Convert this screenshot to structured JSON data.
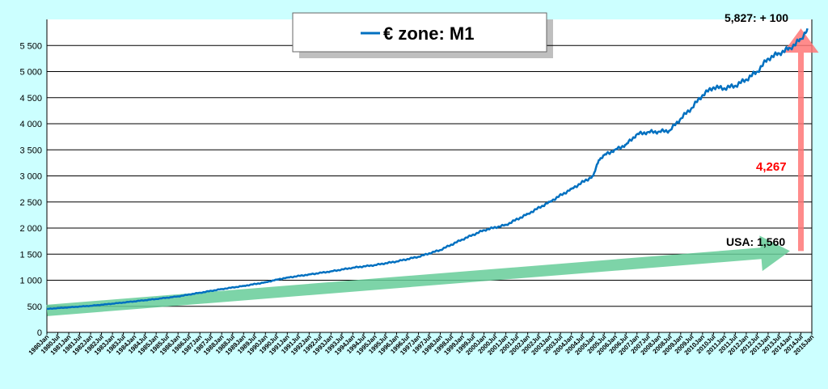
{
  "chart_data": {
    "type": "line",
    "title": "€ zone: M1",
    "legend": "top-center",
    "grid": true,
    "ylim": [
      0,
      6000
    ],
    "yticks": [
      0,
      500,
      1000,
      1500,
      2000,
      2500,
      3000,
      3500,
      4000,
      4500,
      5000,
      5500
    ],
    "ytick_labels": [
      "0",
      "500",
      "1 000",
      "1 500",
      "2 000",
      "2 500",
      "3 000",
      "3 500",
      "4 000",
      "4 500",
      "5 000",
      "5 500"
    ],
    "x_start": 1980.0,
    "x_end": 2015.0,
    "x_tick_labels": [
      "1980Jan",
      "1980Jul",
      "1981Jan",
      "1981Jul",
      "1982Jan",
      "1982Jul",
      "1983Jan",
      "1983Jul",
      "1984Jan",
      "1984Jul",
      "1985Jan",
      "1985Jul",
      "1986Jan",
      "1986Jul",
      "1987Jan",
      "1987Jul",
      "1988Jan",
      "1988Jul",
      "1989Jan",
      "1989Jul",
      "1990Jan",
      "1990Jul",
      "1991Jan",
      "1991Jul",
      "1992Jan",
      "1992Jul",
      "1993Jan",
      "1993Jul",
      "1994Jan",
      "1994Jul",
      "1995Jan",
      "1995Jul",
      "1996Jan",
      "1996Jul",
      "1997Jan",
      "1997Jul",
      "1998Jan",
      "1998Jul",
      "1999Jan",
      "1999Jul",
      "2000Jan",
      "2000Jul",
      "2001Jan",
      "2001Jul",
      "2002Jan",
      "2002Jul",
      "2003Jan",
      "2003Jul",
      "2004Jan",
      "2004Jul",
      "2005Jan",
      "2005Jul",
      "2006Jan",
      "2006Jul",
      "2007Jan",
      "2007Jul",
      "2008Jan",
      "2008Jul",
      "2009Jan",
      "2009Jul",
      "2010Jan",
      "2010Jul",
      "2011Jan",
      "2011Jul",
      "2012Jan",
      "2012Jul",
      "2013Jan",
      "2013Jul",
      "2014Jan",
      "2014Jul",
      "2015Jan"
    ],
    "series": [
      {
        "name": "€ zone: M1",
        "color": "#0070c0",
        "points": [
          [
            1980.0,
            450
          ],
          [
            1981.0,
            480
          ],
          [
            1982.0,
            510
          ],
          [
            1983.0,
            550
          ],
          [
            1984.0,
            595
          ],
          [
            1985.0,
            640
          ],
          [
            1986.0,
            690
          ],
          [
            1987.0,
            760
          ],
          [
            1988.0,
            830
          ],
          [
            1989.0,
            890
          ],
          [
            1990.0,
            960
          ],
          [
            1990.5,
            1010
          ],
          [
            1991.0,
            1050
          ],
          [
            1992.0,
            1110
          ],
          [
            1993.0,
            1170
          ],
          [
            1994.0,
            1240
          ],
          [
            1995.0,
            1290
          ],
          [
            1996.0,
            1360
          ],
          [
            1997.0,
            1450
          ],
          [
            1998.0,
            1580
          ],
          [
            1999.0,
            1780
          ],
          [
            2000.0,
            1960
          ],
          [
            2001.0,
            2060
          ],
          [
            2002.0,
            2270
          ],
          [
            2003.0,
            2500
          ],
          [
            2004.0,
            2750
          ],
          [
            2005.0,
            3000
          ],
          [
            2005.25,
            3300
          ],
          [
            2005.5,
            3400
          ],
          [
            2006.0,
            3500
          ],
          [
            2006.5,
            3600
          ],
          [
            2007.0,
            3800
          ],
          [
            2007.5,
            3840
          ],
          [
            2008.0,
            3850
          ],
          [
            2008.5,
            3870
          ],
          [
            2009.0,
            4100
          ],
          [
            2009.5,
            4300
          ],
          [
            2010.0,
            4550
          ],
          [
            2010.5,
            4700
          ],
          [
            2011.0,
            4680
          ],
          [
            2011.5,
            4730
          ],
          [
            2012.0,
            4850
          ],
          [
            2012.5,
            5000
          ],
          [
            2013.0,
            5250
          ],
          [
            2013.5,
            5350
          ],
          [
            2014.0,
            5450
          ],
          [
            2014.5,
            5620
          ],
          [
            2014.8,
            5827
          ]
        ]
      }
    ],
    "annotations": [
      {
        "text": "5,827: + 100",
        "color": "#000000"
      },
      {
        "text": "4,267",
        "color": "#ff0000"
      },
      {
        "text": "USA: 1,560",
        "color": "#000000"
      }
    ],
    "arrows": [
      {
        "name": "usa-trend-arrow",
        "color": "#66cc99",
        "from": [
          1980.0,
          420
        ],
        "to": [
          2014.0,
          1560
        ]
      },
      {
        "name": "increase-arrow",
        "color": "#ff7777",
        "from": [
          2014.5,
          1560
        ],
        "to": [
          2014.5,
          5827
        ]
      }
    ]
  }
}
